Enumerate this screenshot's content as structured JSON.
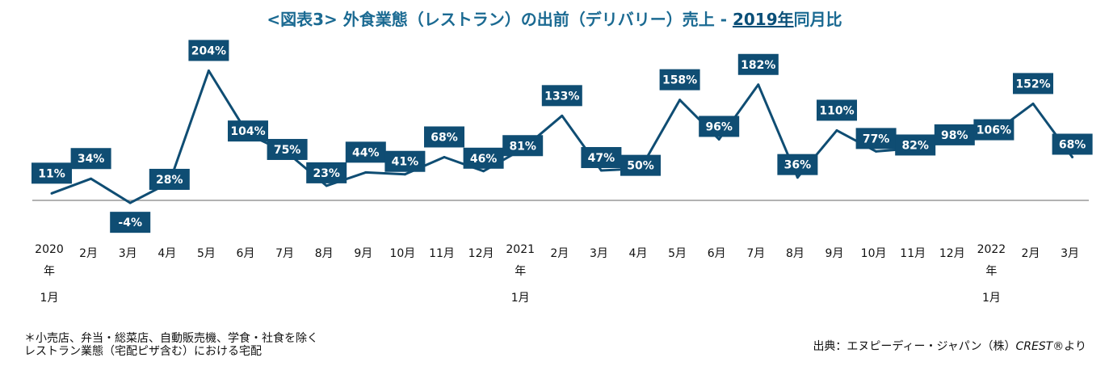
{
  "title": {
    "prefix": "<図表3> 外食業態（レストラン）の出前（デリバリー）売上 - ",
    "highlight": "2019年",
    "suffix": "同月比"
  },
  "notes": {
    "left_line1": "＊小売店、弁当・総菜店、自動販売機、学食・社食を除く",
    "left_line2": "レストラン業態（宅配ピザ含む）における宅配",
    "source_prefix": "出典：エヌピーディー・ジャパン（株）",
    "source_brand": "CREST®",
    "source_suffix": "より"
  },
  "colors": {
    "line": "#0f4d73",
    "label_bg": "#0f4d73",
    "label_text": "#ffffff",
    "zero_line": "#999999",
    "title": "#1b6a92"
  },
  "chart_data": {
    "type": "line",
    "categories": [
      [
        "2020",
        "年",
        "1月"
      ],
      [
        "2月"
      ],
      [
        "3月"
      ],
      [
        "4月"
      ],
      [
        "5月"
      ],
      [
        "6月"
      ],
      [
        "7月"
      ],
      [
        "8月"
      ],
      [
        "9月"
      ],
      [
        "10月"
      ],
      [
        "11月"
      ],
      [
        "12月"
      ],
      [
        "2021",
        "年",
        "1月"
      ],
      [
        "2月"
      ],
      [
        "3月"
      ],
      [
        "4月"
      ],
      [
        "5月"
      ],
      [
        "6月"
      ],
      [
        "7月"
      ],
      [
        "8月"
      ],
      [
        "9月"
      ],
      [
        "10月"
      ],
      [
        "11月"
      ],
      [
        "12月"
      ],
      [
        "2022",
        "年",
        "1月"
      ],
      [
        "2月"
      ],
      [
        "3月"
      ]
    ],
    "series": [
      {
        "values": [
          11,
          34,
          -4,
          28,
          204,
          104,
          75,
          23,
          44,
          41,
          68,
          46,
          81,
          133,
          47,
          50,
          158,
          96,
          182,
          36,
          110,
          77,
          82,
          98,
          106,
          152,
          68
        ],
        "labels": [
          "11%",
          "34%",
          "-4%",
          "28%",
          "204%",
          "104%",
          "75%",
          "23%",
          "44%",
          "41%",
          "68%",
          "46%",
          "81%",
          "133%",
          "47%",
          "50%",
          "158%",
          "96%",
          "182%",
          "36%",
          "110%",
          "77%",
          "82%",
          "98%",
          "106%",
          "152%",
          "68%"
        ]
      }
    ],
    "ylim": [
      -4,
      204
    ],
    "grid": false,
    "zero_line": true,
    "legend": "none"
  }
}
